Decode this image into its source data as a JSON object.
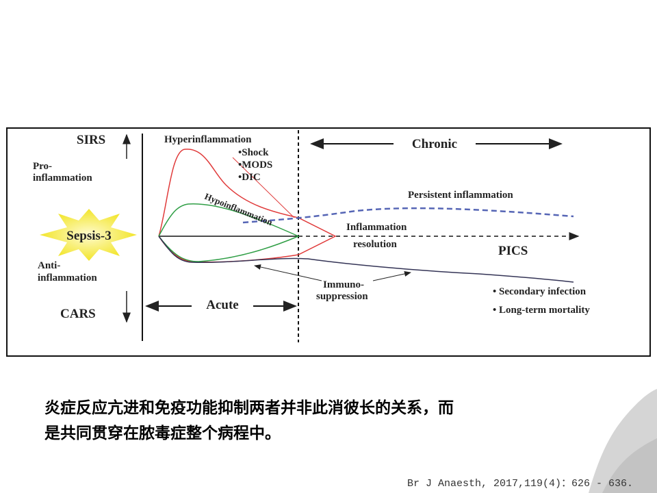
{
  "diagram": {
    "axis": {
      "top": "SIRS",
      "pro": [
        "Pro-",
        "inflammation"
      ],
      "center": "Sepsis-3",
      "anti": [
        "Anti-",
        "inflammation"
      ],
      "bottom": "CARS"
    },
    "hyper": {
      "title": "Hyperinflammation",
      "items": [
        "•Shock",
        "•MODS",
        "•DIC"
      ]
    },
    "hypo": "Hypoinflammation",
    "phases": {
      "acute": "Acute",
      "chronic": "Chronic"
    },
    "persistent": "Persistent inflammation",
    "resolution": [
      "Inflammation",
      "resolution"
    ],
    "pics": "PICS",
    "immuno": [
      "Immuno-",
      "suppression"
    ],
    "outcomes": [
      "• Secondary infection",
      "• Long-term mortality"
    ]
  },
  "caption": {
    "lines": [
      "炎症反应亢进和免疫功能抑制两者并非此消彼长的关系，而",
      "是共同贯穿在脓毒症整个病程中。"
    ]
  },
  "citation": "Br J Anaesth, 2017,119(4)：626 - 636."
}
